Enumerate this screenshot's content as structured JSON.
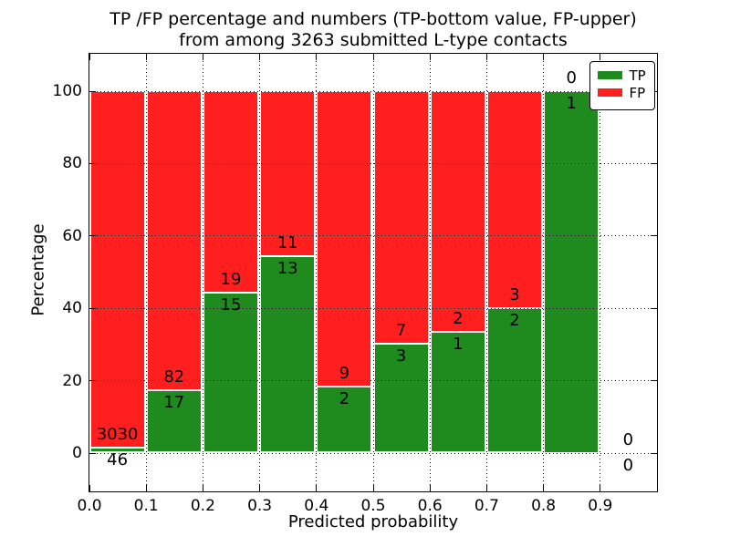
{
  "figure": {
    "title": "TP /FP percentage and numbers (TP-bottom value, FP-upper)",
    "subtitle": "from among 3263 submitted L-type contacts"
  },
  "chart_data": {
    "type": "bar",
    "stacked": true,
    "orientation": "vertical",
    "title": "TP /FP percentage and numbers (TP-bottom value, FP-upper)",
    "subtitle": "from among 3263 submitted L-type contacts",
    "xlabel": "Predicted probability",
    "ylabel": "Percentage",
    "total_contacts": 3263,
    "x_tick_labels": [
      "0.0",
      "0.1",
      "0.2",
      "0.3",
      "0.4",
      "0.5",
      "0.6",
      "0.7",
      "0.8",
      "0.9"
    ],
    "y_tick_labels": [
      "0",
      "20",
      "40",
      "60",
      "80",
      "100"
    ],
    "y_ticks": [
      0,
      20,
      40,
      60,
      80,
      100
    ],
    "xlim": [
      0.0,
      1.0
    ],
    "ylim": [
      -11,
      110
    ],
    "grid": {
      "style": "dotted",
      "color": "#000000"
    },
    "colors": {
      "tp": "#1f8b1f",
      "fp": "#ff1f1f"
    },
    "legend": {
      "position": "upper right",
      "entries": [
        {
          "key": "tp",
          "label": "TP",
          "color": "#1f8b1f"
        },
        {
          "key": "fp",
          "label": "FP",
          "color": "#ff1f1f"
        }
      ]
    },
    "bins": [
      {
        "range": [
          0.0,
          0.1
        ],
        "tp": 46,
        "fp": 3030
      },
      {
        "range": [
          0.1,
          0.2
        ],
        "tp": 17,
        "fp": 82
      },
      {
        "range": [
          0.2,
          0.3
        ],
        "tp": 15,
        "fp": 19
      },
      {
        "range": [
          0.3,
          0.4
        ],
        "tp": 13,
        "fp": 11
      },
      {
        "range": [
          0.4,
          0.5
        ],
        "tp": 2,
        "fp": 9
      },
      {
        "range": [
          0.5,
          0.6
        ],
        "tp": 3,
        "fp": 7
      },
      {
        "range": [
          0.6,
          0.7
        ],
        "tp": 1,
        "fp": 2
      },
      {
        "range": [
          0.7,
          0.8
        ],
        "tp": 2,
        "fp": 3
      },
      {
        "range": [
          0.8,
          0.9
        ],
        "tp": 1,
        "fp": 0
      },
      {
        "range": [
          0.9,
          1.0
        ],
        "tp": 0,
        "fp": 0
      }
    ]
  }
}
